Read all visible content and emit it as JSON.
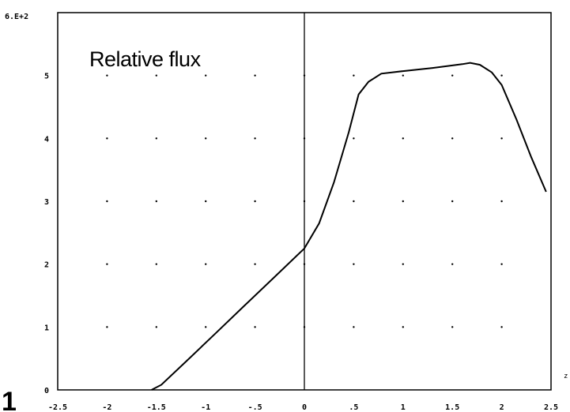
{
  "chart_data": {
    "type": "line",
    "title": "Relative flux",
    "xlabel": "",
    "ylabel": "",
    "xlim": [
      -2.5,
      2.5
    ],
    "ylim": [
      0,
      600
    ],
    "y_top_label": "6.E+2",
    "grid": "dotted",
    "x_ticks": [
      {
        "v": -2.5,
        "label": "-2.5"
      },
      {
        "v": -2.0,
        "label": "-2"
      },
      {
        "v": -1.5,
        "label": "-1.5"
      },
      {
        "v": -1.0,
        "label": "-1"
      },
      {
        "v": -0.5,
        "label": "-.5"
      },
      {
        "v": 0.0,
        "label": "0"
      },
      {
        "v": 0.5,
        "label": ".5"
      },
      {
        "v": 1.0,
        "label": "1"
      },
      {
        "v": 1.5,
        "label": "1.5"
      },
      {
        "v": 2.0,
        "label": "2"
      },
      {
        "v": 2.5,
        "label": "2.5"
      }
    ],
    "y_ticks": [
      {
        "v": 0,
        "label": "0"
      },
      {
        "v": 100,
        "label": "1"
      },
      {
        "v": 200,
        "label": "2"
      },
      {
        "v": 300,
        "label": "3"
      },
      {
        "v": 400,
        "label": "4"
      },
      {
        "v": 500,
        "label": "5"
      }
    ],
    "series": [
      {
        "x": [
          -1.55,
          -1.45,
          -1.2,
          -0.9,
          -0.6,
          -0.3,
          0.0,
          0.15,
          0.3,
          0.45,
          0.55,
          0.65,
          0.78,
          1.0,
          1.3,
          1.6,
          1.68,
          1.78,
          1.9,
          2.0,
          2.15,
          2.3,
          2.45
        ],
        "y": [
          0,
          8,
          45,
          90,
          135,
          180,
          225,
          265,
          330,
          410,
          470,
          490,
          503,
          507,
          512,
          518,
          520,
          517,
          505,
          485,
          430,
          370,
          315
        ],
        "color": "#000000"
      }
    ],
    "vline_at_x": 0
  },
  "annotations": {
    "corner_mark": "1",
    "edge_mark": "z"
  }
}
